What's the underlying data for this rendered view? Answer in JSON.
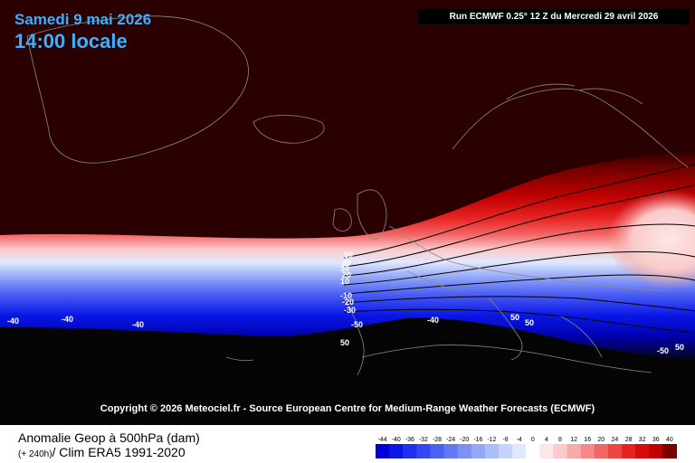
{
  "header": {
    "date": "Samedi 9 mai 2026",
    "time": "14:00 locale",
    "run": "Run ECMWF 0.25° 12 Z du Mercredi 29 avril 2026"
  },
  "copyright": "Copyright © 2026 Meteociel.fr - Source European Centre for Medium-Range Weather Forecasts (ECMWF)",
  "legend": {
    "title": "Anomalie Geop à 500hPa (dam)",
    "lead": "(+ 240h)",
    "subtitle": "/ Clim ERA5 1991-2020",
    "ticks": [
      "-44",
      "-40",
      "-36",
      "-32",
      "-28",
      "-24",
      "-20",
      "-16",
      "-12",
      "-8",
      "-4",
      "0",
      "4",
      "8",
      "12",
      "16",
      "20",
      "24",
      "28",
      "32",
      "36",
      "40"
    ],
    "colors": [
      "#0000d8",
      "#0a18e6",
      "#2030ee",
      "#3448f2",
      "#4c60f4",
      "#6478f4",
      "#7c90f6",
      "#94a8f8",
      "#acbefa",
      "#c6d4fc",
      "#e0e8fe",
      "#ffffff",
      "#fde6e6",
      "#fbcaca",
      "#f8aaaa",
      "#f58888",
      "#f26666",
      "#ee4444",
      "#e82222",
      "#d80a0a",
      "#c00000",
      "#7a0000"
    ]
  },
  "contour_labels": [
    "50",
    "40",
    "30",
    "20",
    "10",
    "-10",
    "-20",
    "-30",
    "-40",
    "-40",
    "-40",
    "-50",
    "-40",
    "50",
    "50",
    "50",
    "-50",
    "50"
  ],
  "colors": {
    "background": "#2a0000",
    "accent_text": "#3ab0ff"
  }
}
